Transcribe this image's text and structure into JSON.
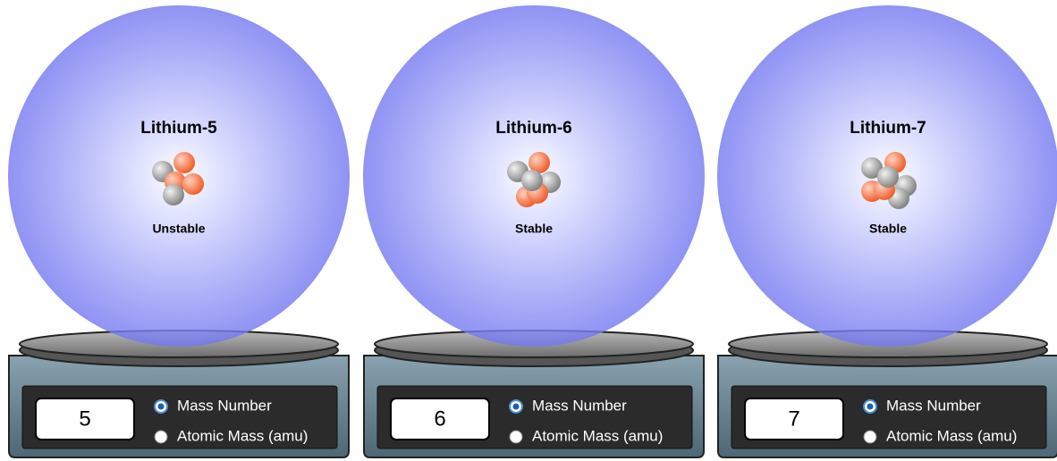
{
  "scales": [
    {
      "isotope": "Lithium-5",
      "stability": "Unstable",
      "reading": 5,
      "options": [
        "Mass Number",
        "Atomic Mass (amu)"
      ],
      "selected_option": 0
    },
    {
      "isotope": "Lithium-6",
      "stability": "Stable",
      "reading": 6,
      "options": [
        "Mass Number",
        "Atomic Mass (amu)"
      ],
      "selected_option": 0
    },
    {
      "isotope": "Lithium-7",
      "stability": "Stable",
      "reading": 7,
      "options": [
        "Mass Number",
        "Atomic Mass (amu)"
      ],
      "selected_option": 0
    }
  ]
}
